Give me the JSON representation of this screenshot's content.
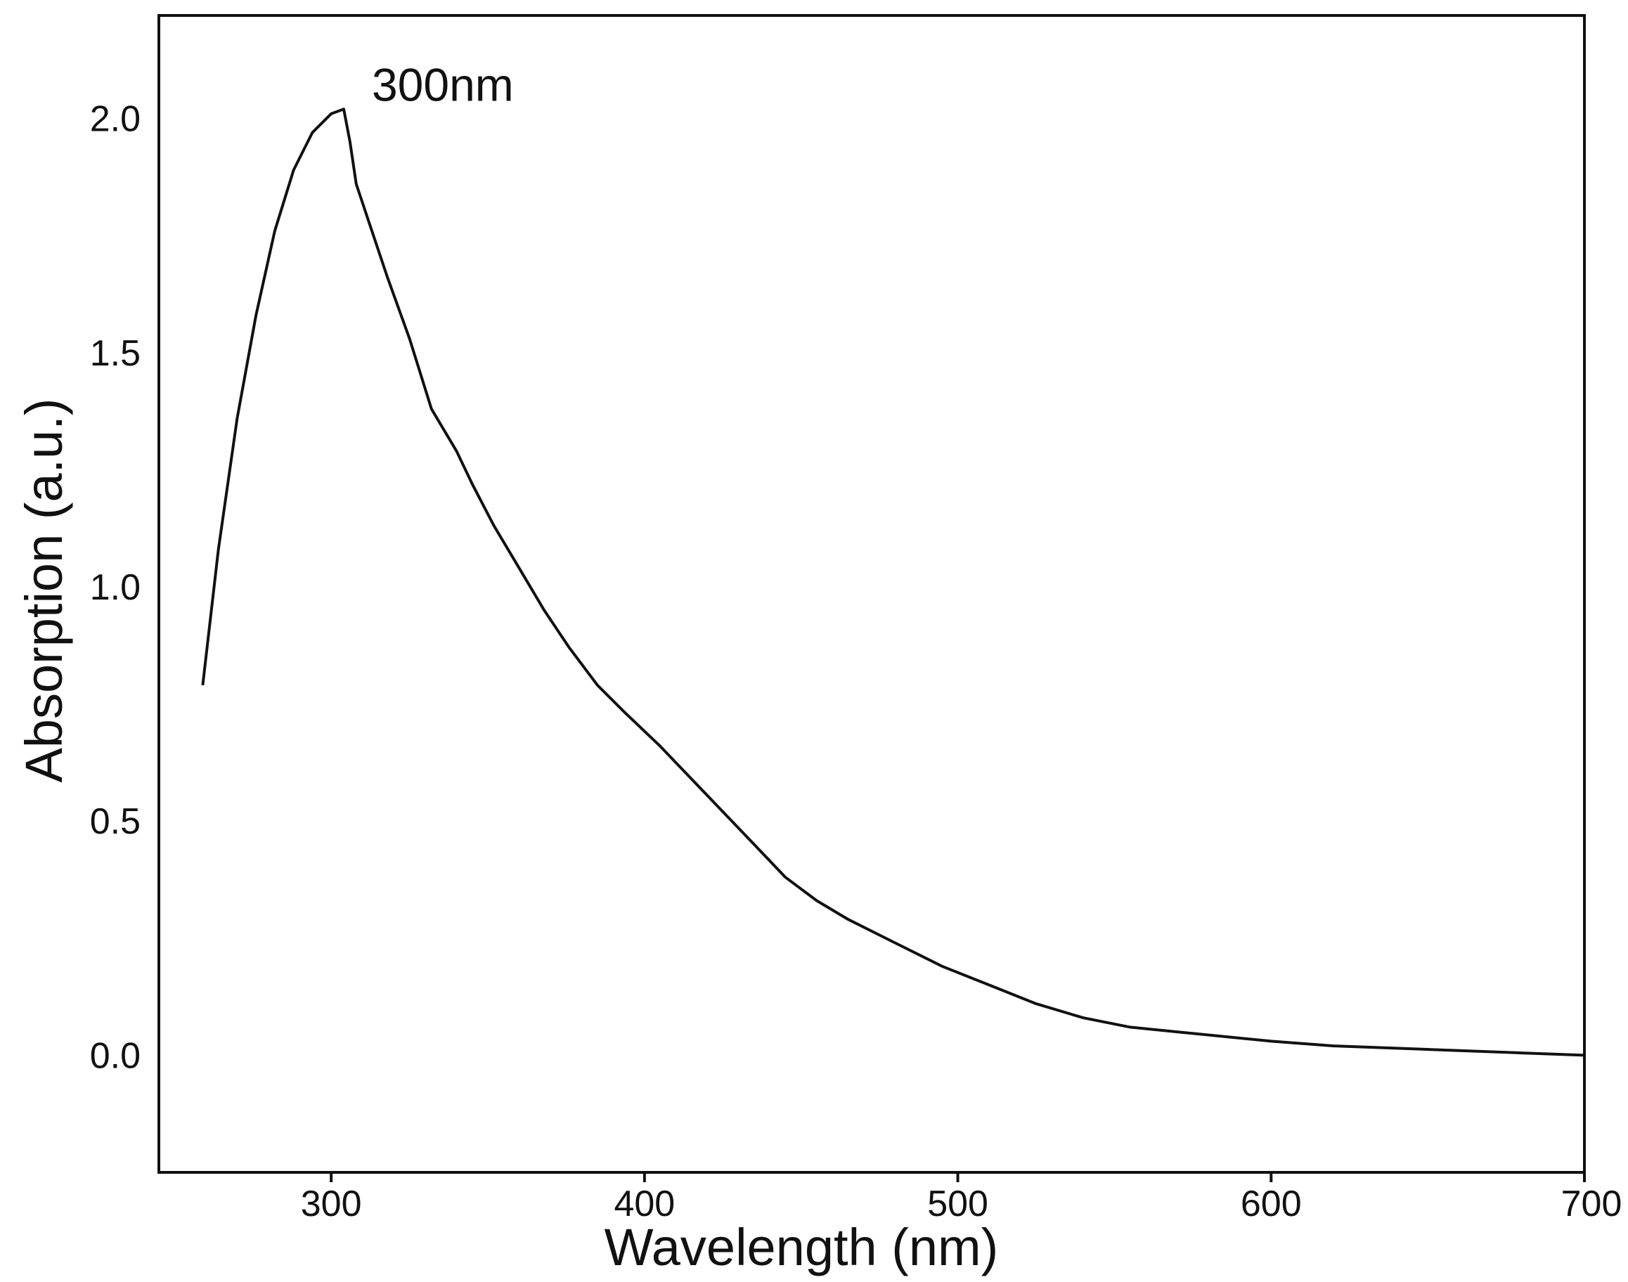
{
  "chart_data": {
    "type": "line",
    "title": "",
    "xlabel": "Wavelength (nm)",
    "ylabel": "Absorption (a.u.)",
    "xlim": [
      245,
      700
    ],
    "ylim": [
      -0.25,
      2.22
    ],
    "xticks": [
      300,
      400,
      500,
      600,
      700
    ],
    "xtick_labels": [
      "300",
      "400",
      "500",
      "600",
      "700"
    ],
    "yticks": [
      0.0,
      0.5,
      1.0,
      1.5,
      2.0
    ],
    "ytick_labels": [
      "0.0",
      "0.5",
      "1.0",
      "1.5",
      "2.0"
    ],
    "grid": false,
    "line_color": "#111111",
    "series": [
      {
        "x": [
          259,
          264,
          270,
          276,
          282,
          288,
          294,
          300,
          304,
          306,
          308,
          312,
          318,
          325,
          332,
          340,
          345,
          352,
          360,
          368,
          376,
          385,
          394,
          405,
          415,
          425,
          435,
          445,
          455,
          465,
          480,
          495,
          510,
          525,
          540,
          555,
          570,
          585,
          600,
          620,
          640,
          660,
          680,
          700
        ],
        "y": [
          0.79,
          1.08,
          1.36,
          1.58,
          1.76,
          1.89,
          1.97,
          2.01,
          2.02,
          1.95,
          1.86,
          1.78,
          1.66,
          1.53,
          1.38,
          1.29,
          1.22,
          1.13,
          1.04,
          0.95,
          0.87,
          0.79,
          0.73,
          0.66,
          0.59,
          0.52,
          0.45,
          0.38,
          0.33,
          0.29,
          0.24,
          0.19,
          0.15,
          0.11,
          0.08,
          0.06,
          0.05,
          0.04,
          0.03,
          0.02,
          0.015,
          0.01,
          0.005,
          0.0
        ]
      }
    ],
    "annotations": [
      {
        "text": "300nm",
        "x": 304,
        "y": 2.02
      }
    ]
  }
}
